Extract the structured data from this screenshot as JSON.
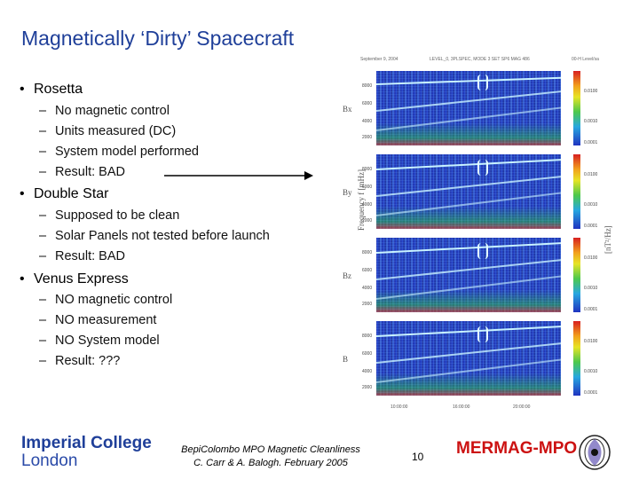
{
  "slide": {
    "title": "Magnetically ‘Dirty’ Spacecraft",
    "bullets": [
      {
        "label": "Rosetta",
        "items": [
          "No magnetic control",
          "Units measured (DC)",
          "System model performed",
          "Result: BAD"
        ]
      },
      {
        "label": "Double Star",
        "items": [
          "Supposed to be clean",
          "Solar Panels not tested before launch",
          "Result: BAD"
        ]
      },
      {
        "label": "Venus Express",
        "items": [
          "NO magnetic control",
          "NO measurement",
          "NO System model",
          "Result: ???"
        ]
      }
    ]
  },
  "figure": {
    "header": [
      "September 9, 2004",
      "LEVEL_0, 3PLSPEC, MODE 3 SET SP6 MAG 486",
      "00-H Level/sa"
    ],
    "panel_labels": [
      "Bx",
      "By",
      "Bz",
      "B"
    ],
    "y_ticks": [
      "8000",
      "6000",
      "4000",
      "2000"
    ],
    "colorbar_ticks": [
      "0.0100",
      "0.0010",
      "0.0001"
    ],
    "y_axis_label": "Frequency f [mHz]",
    "colorbar_label": "[nT²/Hz]",
    "x_ticks": [
      "10:00:00",
      "16:00:00",
      "20:00:00"
    ]
  },
  "footer": {
    "logo_line1": "Imperial College",
    "logo_line2": "London",
    "center_line1": "BepiColombo MPO Magnetic Cleanliness",
    "center_line2": "C. Carr & A. Balogh. February 2005",
    "page_number": "10",
    "project": "MERMAG-MPO"
  },
  "colors": {
    "title": "#1f3f99",
    "project": "#cc1111",
    "arrow": "#000000"
  },
  "icons": {
    "arrow": "right-arrow-icon",
    "emblem": "mermag-emblem-icon"
  }
}
